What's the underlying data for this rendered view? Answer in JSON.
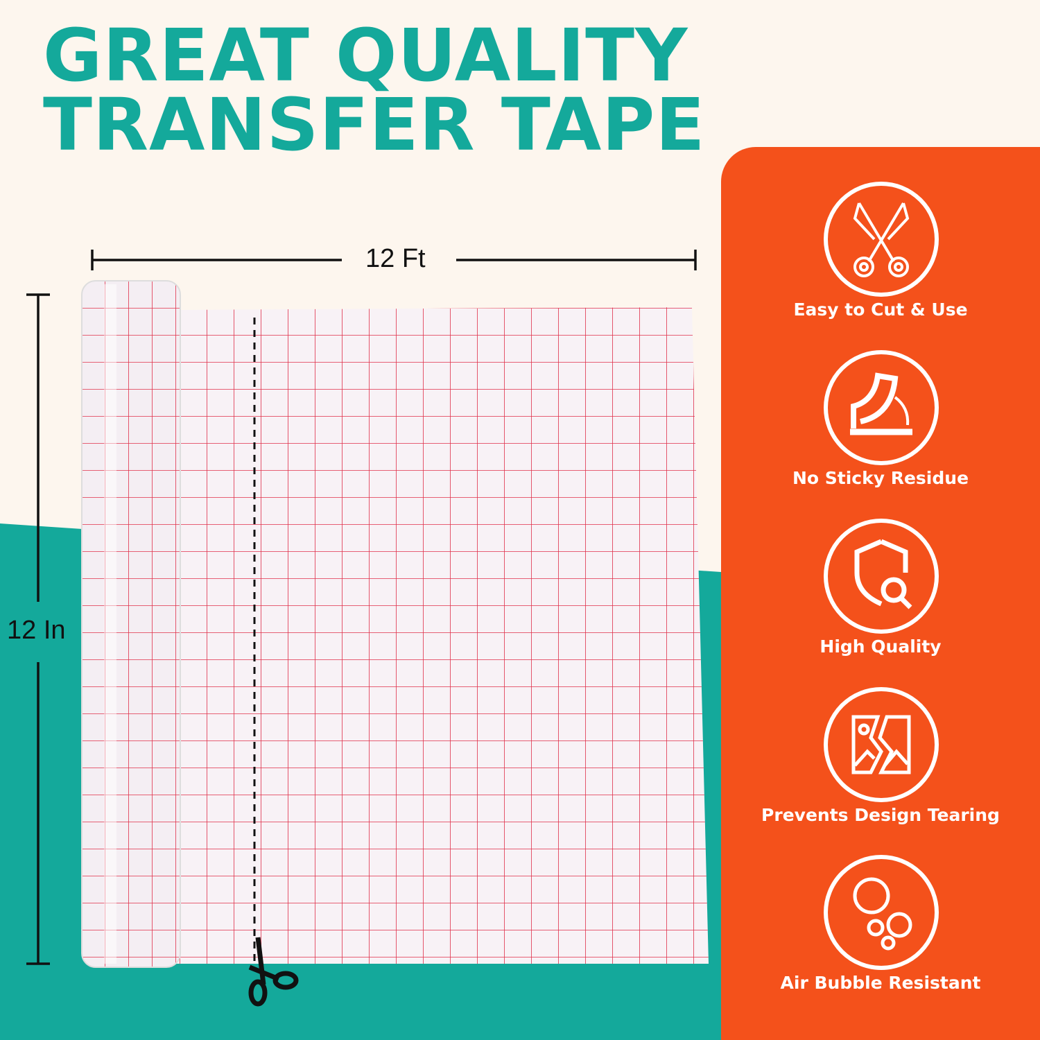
{
  "title": {
    "line1": "GREAT QUALITY",
    "line2": "TRANSFER TAPE"
  },
  "dimensions": {
    "width_label": "12 Ft",
    "height_label": "12 In"
  },
  "features": [
    {
      "label": "Easy to Cut & Use",
      "icon": "scissors-icon"
    },
    {
      "label": "No Sticky Residue",
      "icon": "peel-tape-icon"
    },
    {
      "label": "High Quality",
      "icon": "shield-search-icon"
    },
    {
      "label": "Prevents Design Tearing",
      "icon": "torn-image-icon"
    },
    {
      "label": "Air Bubble Resistant",
      "icon": "bubbles-icon"
    }
  ],
  "colors": {
    "teal": "#14a99b",
    "orange": "#f4511b",
    "cream": "#fdf6ee",
    "grid": "#e0304a"
  }
}
